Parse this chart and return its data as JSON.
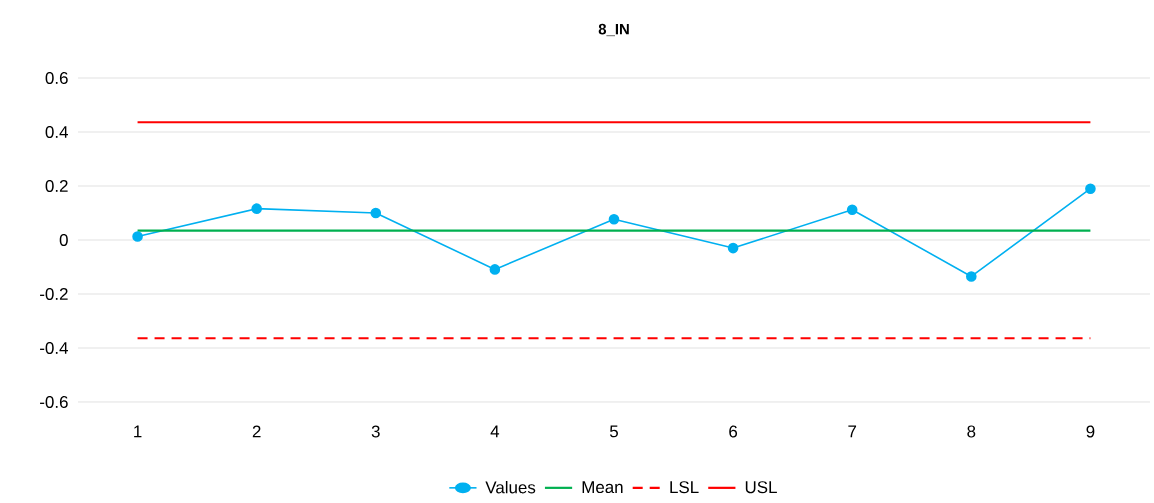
{
  "chart_data": {
    "type": "line",
    "title": "8_IN",
    "categories": [
      "1",
      "2",
      "3",
      "4",
      "5",
      "6",
      "7",
      "8",
      "9"
    ],
    "series": [
      {
        "name": "Values",
        "color": "#00b0f0",
        "marker": "circle",
        "line_style": "solid",
        "values": [
          0.013,
          0.116,
          0.1,
          -0.109,
          0.077,
          -0.03,
          0.112,
          -0.135,
          0.19
        ]
      },
      {
        "name": "Mean",
        "color": "#00b050",
        "marker": "none",
        "line_style": "solid",
        "values": [
          0.035,
          0.035,
          0.035,
          0.035,
          0.035,
          0.035,
          0.035,
          0.035,
          0.035
        ]
      },
      {
        "name": "LSL",
        "color": "#ff0000",
        "marker": "none",
        "line_style": "dashed",
        "values": [
          -0.364,
          -0.364,
          -0.364,
          -0.364,
          -0.364,
          -0.364,
          -0.364,
          -0.364,
          -0.364
        ]
      },
      {
        "name": "USL",
        "color": "#ff0000",
        "marker": "none",
        "line_style": "solid",
        "values": [
          0.436,
          0.436,
          0.436,
          0.436,
          0.436,
          0.436,
          0.436,
          0.436,
          0.436
        ]
      }
    ],
    "ylim": [
      -0.6,
      0.6
    ],
    "yticks": [
      -0.6,
      -0.4,
      -0.2,
      0,
      0.2,
      0.4,
      0.6
    ],
    "grid": "y",
    "legend": "bottom"
  }
}
